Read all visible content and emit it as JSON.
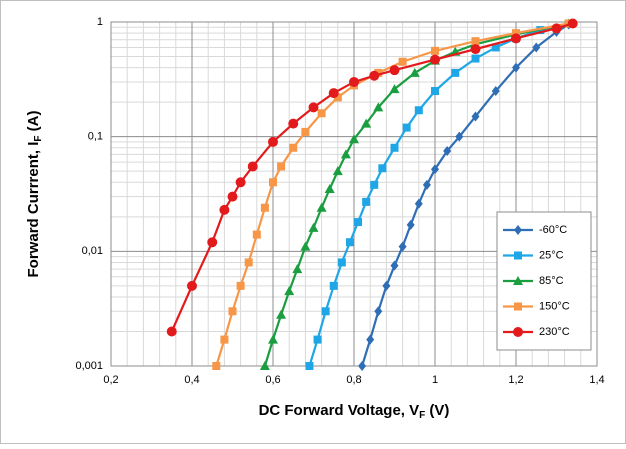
{
  "chart_data": {
    "type": "line",
    "x_label": [
      "DC Forward Voltage, V",
      "F",
      " (V)"
    ],
    "y_label": [
      "Forward Currrent, I",
      "F",
      " (A)"
    ],
    "xlim": [
      0.2,
      1.4
    ],
    "xticks": [
      {
        "value": 0.2,
        "label": "0,2"
      },
      {
        "value": 0.4,
        "label": "0,4"
      },
      {
        "value": 0.6,
        "label": "0,6"
      },
      {
        "value": 0.8,
        "label": "0,8"
      },
      1,
      {
        "value": 1.2,
        "label": "1,2"
      },
      {
        "value": 1.4,
        "label": "1,4"
      }
    ],
    "ylim": [
      0.001,
      1
    ],
    "yticks": [
      {
        "value": 0.001,
        "label": "0,001"
      },
      {
        "value": 0.01,
        "label": "0,01"
      },
      {
        "value": 0.1,
        "label": "0,1"
      },
      1
    ],
    "y_log": true,
    "grid": true,
    "minor_grid": true,
    "legend_position": "lower right",
    "series": [
      {
        "name": "-60°C",
        "color": "#2f6eb5",
        "marker": "diamond",
        "x": [
          0.82,
          0.84,
          0.86,
          0.88,
          0.9,
          0.92,
          0.94,
          0.96,
          0.98,
          1.0,
          1.03,
          1.06,
          1.1,
          1.15,
          1.2,
          1.25,
          1.3,
          1.33
        ],
        "values": [
          0.001,
          0.0017,
          0.003,
          0.005,
          0.0075,
          0.011,
          0.017,
          0.026,
          0.038,
          0.052,
          0.075,
          0.1,
          0.15,
          0.25,
          0.4,
          0.6,
          0.82,
          0.95
        ]
      },
      {
        "name": "25°C",
        "color": "#1ea6e6",
        "marker": "square",
        "x": [
          0.69,
          0.71,
          0.73,
          0.75,
          0.77,
          0.79,
          0.81,
          0.83,
          0.85,
          0.87,
          0.9,
          0.93,
          0.96,
          1.0,
          1.05,
          1.1,
          1.15,
          1.2,
          1.26,
          1.33
        ],
        "values": [
          0.001,
          0.0017,
          0.003,
          0.005,
          0.008,
          0.012,
          0.018,
          0.027,
          0.038,
          0.053,
          0.08,
          0.12,
          0.17,
          0.25,
          0.36,
          0.48,
          0.6,
          0.72,
          0.85,
          0.97
        ]
      },
      {
        "name": "85°C",
        "color": "#1a9e3f",
        "marker": "triangle",
        "x": [
          0.58,
          0.6,
          0.62,
          0.64,
          0.66,
          0.68,
          0.7,
          0.72,
          0.74,
          0.76,
          0.78,
          0.8,
          0.83,
          0.86,
          0.9,
          0.95,
          1.0,
          1.05,
          1.1,
          1.2,
          1.33
        ],
        "values": [
          0.001,
          0.0017,
          0.0028,
          0.0045,
          0.007,
          0.011,
          0.016,
          0.024,
          0.035,
          0.05,
          0.07,
          0.095,
          0.13,
          0.18,
          0.26,
          0.36,
          0.46,
          0.55,
          0.64,
          0.78,
          0.97
        ]
      },
      {
        "name": "150°C",
        "color": "#f79646",
        "marker": "square",
        "x": [
          0.46,
          0.48,
          0.5,
          0.52,
          0.54,
          0.56,
          0.58,
          0.6,
          0.62,
          0.65,
          0.68,
          0.72,
          0.76,
          0.8,
          0.86,
          0.92,
          1.0,
          1.1,
          1.2,
          1.33
        ],
        "values": [
          0.001,
          0.0017,
          0.003,
          0.005,
          0.008,
          0.014,
          0.024,
          0.04,
          0.055,
          0.08,
          0.11,
          0.16,
          0.22,
          0.28,
          0.36,
          0.45,
          0.56,
          0.68,
          0.8,
          0.97
        ]
      },
      {
        "name": "230°C",
        "color": "#e31a1c",
        "marker": "circle",
        "x": [
          0.35,
          0.4,
          0.45,
          0.48,
          0.5,
          0.52,
          0.55,
          0.6,
          0.65,
          0.7,
          0.75,
          0.8,
          0.85,
          0.9,
          1.0,
          1.1,
          1.2,
          1.3,
          1.34
        ],
        "values": [
          0.002,
          0.005,
          0.012,
          0.023,
          0.03,
          0.04,
          0.055,
          0.09,
          0.13,
          0.18,
          0.24,
          0.3,
          0.34,
          0.38,
          0.47,
          0.58,
          0.72,
          0.88,
          0.97
        ]
      }
    ]
  }
}
